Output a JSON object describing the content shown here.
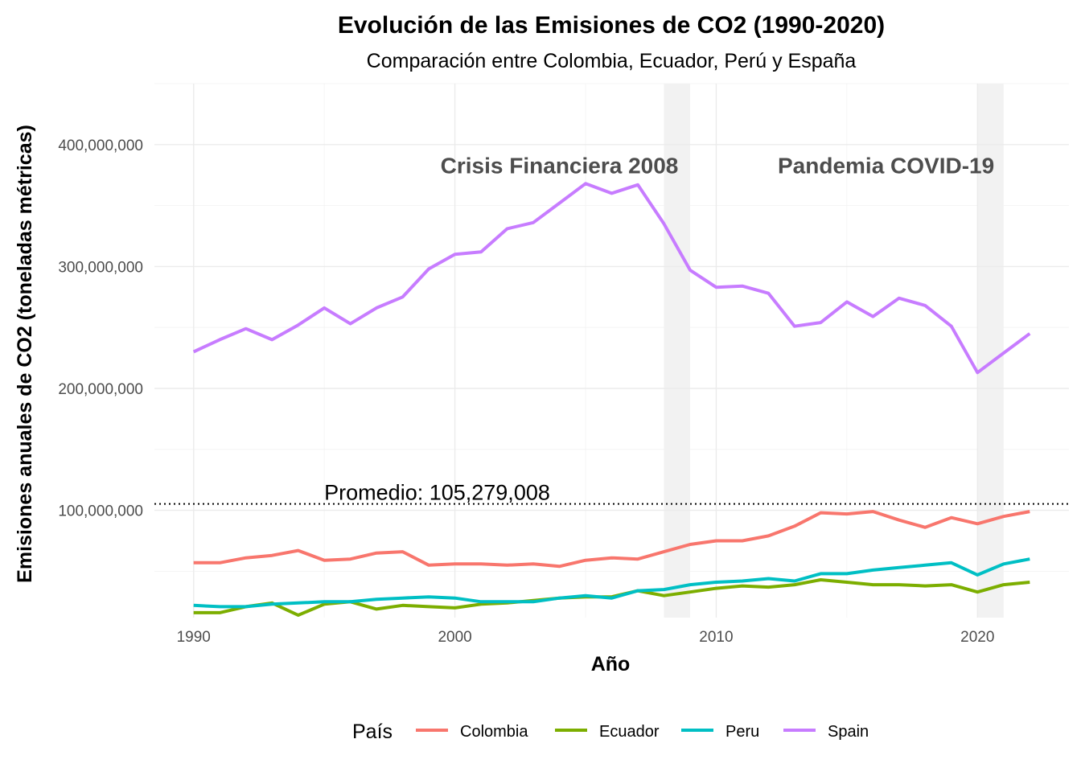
{
  "chart_data": {
    "type": "line",
    "title": "Evolución de las Emisiones de CO2 (1990-2020)",
    "subtitle": "Comparación entre Colombia, Ecuador, Perú y España",
    "xlabel": "Año",
    "ylabel": "Emisiones anuales de CO2 (toneladas métricas)",
    "xlim": [
      1988.5,
      2023.5
    ],
    "ylim": [
      12000000,
      450000000
    ],
    "x_ticks": [
      1990,
      2000,
      2010,
      2020
    ],
    "x_tick_labels": [
      "1990",
      "2000",
      "2010",
      "2020"
    ],
    "y_ticks": [
      100000000,
      200000000,
      300000000,
      400000000
    ],
    "y_tick_labels": [
      "100,000,000",
      "200,000,000",
      "300,000,000",
      "400,000,000"
    ],
    "grid": true,
    "legend": {
      "title": "País",
      "position": "bottom"
    },
    "x": [
      1990,
      1991,
      1992,
      1993,
      1994,
      1995,
      1996,
      1997,
      1998,
      1999,
      2000,
      2001,
      2002,
      2003,
      2004,
      2005,
      2006,
      2007,
      2008,
      2009,
      2010,
      2011,
      2012,
      2013,
      2014,
      2015,
      2016,
      2017,
      2018,
      2019,
      2020,
      2021,
      2022
    ],
    "series": [
      {
        "name": "Colombia",
        "color": "#F8766D",
        "values": [
          57000000,
          57000000,
          61000000,
          63000000,
          67000000,
          59000000,
          60000000,
          65000000,
          66000000,
          55000000,
          56000000,
          56000000,
          55000000,
          56000000,
          54000000,
          59000000,
          61000000,
          60000000,
          66000000,
          72000000,
          75000000,
          75000000,
          79000000,
          87000000,
          98000000,
          97000000,
          99000000,
          92000000,
          86000000,
          94000000,
          89000000,
          95000000,
          99000000
        ]
      },
      {
        "name": "Ecuador",
        "color": "#7CAE00",
        "values": [
          16000000,
          16000000,
          21000000,
          24000000,
          14000000,
          23000000,
          25000000,
          19000000,
          22000000,
          21000000,
          20000000,
          23000000,
          24000000,
          26000000,
          28000000,
          29000000,
          29000000,
          34000000,
          30000000,
          33000000,
          36000000,
          38000000,
          37000000,
          39000000,
          43000000,
          41000000,
          39000000,
          39000000,
          38000000,
          39000000,
          33000000,
          39000000,
          41000000
        ]
      },
      {
        "name": "Peru",
        "color": "#00BFC4",
        "values": [
          22000000,
          21000000,
          21000000,
          23000000,
          24000000,
          25000000,
          25000000,
          27000000,
          28000000,
          29000000,
          28000000,
          25000000,
          25000000,
          25000000,
          28000000,
          30000000,
          28000000,
          34000000,
          35000000,
          39000000,
          41000000,
          42000000,
          44000000,
          42000000,
          48000000,
          48000000,
          51000000,
          53000000,
          55000000,
          57000000,
          47000000,
          56000000,
          60000000
        ]
      },
      {
        "name": "Spain",
        "color": "#C77CFF",
        "values": [
          230000000,
          240000000,
          249000000,
          240000000,
          252000000,
          266000000,
          253000000,
          266000000,
          275000000,
          298000000,
          310000000,
          312000000,
          331000000,
          336000000,
          352000000,
          368000000,
          360000000,
          367000000,
          335000000,
          297000000,
          283000000,
          284000000,
          278000000,
          251000000,
          254000000,
          271000000,
          259000000,
          274000000,
          268000000,
          251000000,
          213000000,
          229000000,
          245000000
        ]
      }
    ],
    "annotations": [
      {
        "text": "Crisis Financiera 2008",
        "x": 2004,
        "y": 383000000,
        "shade": [
          2008,
          2009
        ]
      },
      {
        "text": "Pandemia COVID-19",
        "x": 2016.5,
        "y": 383000000,
        "shade": [
          2020,
          2021
        ]
      }
    ],
    "reference_line": {
      "value": 105279008,
      "label": "Promedio: 105,279,008",
      "label_x": 1995,
      "style": "dotted"
    }
  }
}
